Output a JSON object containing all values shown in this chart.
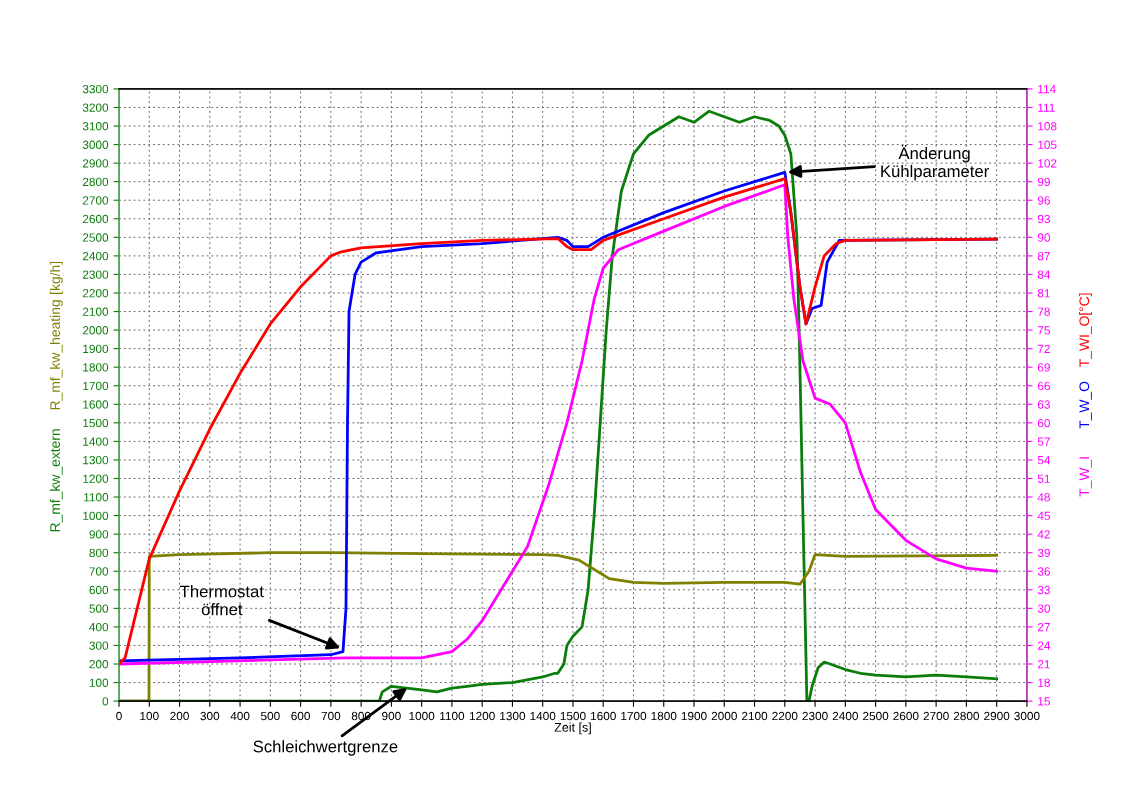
{
  "chart_data": {
    "type": "line",
    "xlabel": "Zeit [s]",
    "ylabel": "[kg/h]",
    "y2label": "[°C]",
    "xlim": [
      0,
      3000
    ],
    "xticks": [
      0,
      100,
      200,
      300,
      400,
      500,
      600,
      700,
      800,
      900,
      1000,
      1100,
      1200,
      1300,
      1400,
      1500,
      1600,
      1700,
      1800,
      1900,
      2000,
      2100,
      2200,
      2300,
      2400,
      2500,
      2600,
      2700,
      2800,
      2900,
      3000
    ],
    "ylim": [
      0,
      3300
    ],
    "yticks": [
      0,
      100,
      200,
      300,
      400,
      500,
      600,
      700,
      800,
      900,
      1000,
      1100,
      1200,
      1300,
      1400,
      1500,
      1600,
      1700,
      1800,
      1900,
      2000,
      2100,
      2200,
      2300,
      2400,
      2500,
      2600,
      2700,
      2800,
      2900,
      3000,
      3100,
      3200,
      3300
    ],
    "y2lim": [
      15,
      114
    ],
    "y2ticks": [
      15,
      18,
      21,
      24,
      27,
      30,
      33,
      36,
      39,
      42,
      45,
      48,
      51,
      54,
      57,
      60,
      63,
      66,
      69,
      72,
      75,
      78,
      81,
      84,
      87,
      90,
      93,
      96,
      99,
      102,
      105,
      108,
      111,
      114
    ],
    "grid": true,
    "legend": false,
    "line_style": "solid",
    "marker": "none",
    "series": [
      {
        "name": "R_mf_kw_extern",
        "color": "#0a7d0a",
        "x": [
          0,
          860,
          870,
          900,
          950,
          1000,
          1050,
          1100,
          1150,
          1200,
          1300,
          1400,
          1440,
          1450,
          1470,
          1480,
          1500,
          1530,
          1550,
          1570,
          1590,
          1610,
          1630,
          1660,
          1700,
          1750,
          1800,
          1850,
          1900,
          1950,
          2000,
          2050,
          2100,
          2150,
          2180,
          2200,
          2220,
          2240,
          2250,
          2260,
          2273,
          2280,
          2290,
          2310,
          2330,
          2350,
          2400,
          2450,
          2500,
          2600,
          2700,
          2800,
          2900
        ],
        "values": [
          0,
          0,
          50,
          80,
          70,
          60,
          50,
          70,
          80,
          90,
          100,
          130,
          150,
          150,
          200,
          300,
          350,
          400,
          600,
          1000,
          1500,
          2000,
          2400,
          2750,
          2950,
          3050,
          3100,
          3150,
          3120,
          3180,
          3150,
          3120,
          3150,
          3130,
          3100,
          3050,
          2950,
          2500,
          1800,
          1000,
          0,
          0,
          80,
          180,
          210,
          200,
          170,
          150,
          140,
          130,
          140,
          130,
          120
        ]
      },
      {
        "name": "R_mf_kw_heating",
        "color": "#808000",
        "x": [
          0,
          99,
          100,
          200,
          500,
          700,
          1000,
          1400,
          1450,
          1520,
          1580,
          1620,
          1700,
          1800,
          2000,
          2200,
          2250,
          2280,
          2300,
          2400,
          2900
        ],
        "values": [
          0,
          0,
          780,
          790,
          800,
          800,
          795,
          790,
          785,
          760,
          700,
          660,
          640,
          635,
          640,
          640,
          630,
          700,
          790,
          780,
          785
        ]
      },
      {
        "name": "T_W_I",
        "color": "#ff00ff",
        "axis": "y2",
        "x": [
          0,
          750,
          1000,
          1100,
          1150,
          1200,
          1250,
          1300,
          1350,
          1420,
          1480,
          1530,
          1570,
          1600,
          1650,
          1800,
          2000,
          2200,
          2210,
          2230,
          2260,
          2300,
          2350,
          2400,
          2450,
          2500,
          2600,
          2700,
          2800,
          2900
        ],
        "values": [
          21,
          22,
          22,
          23,
          25,
          28,
          32,
          36,
          40,
          50,
          60,
          70,
          80,
          85,
          88,
          91,
          95,
          98.5,
          90,
          80,
          70,
          64,
          63,
          60,
          52,
          46,
          41,
          38,
          36.5,
          36
        ]
      },
      {
        "name": "T_W_O",
        "color": "#0000ff",
        "axis": "y2",
        "x": [
          0,
          400,
          700,
          740,
          750,
          755,
          760,
          780,
          800,
          850,
          1000,
          1200,
          1450,
          1480,
          1500,
          1550,
          1600,
          1800,
          2000,
          2200,
          2220,
          2250,
          2270,
          2290,
          2320,
          2340,
          2380,
          2900
        ],
        "values": [
          21.5,
          22,
          22.5,
          23,
          30,
          60,
          78,
          84,
          86,
          87.5,
          88.5,
          89,
          90,
          89.5,
          88.5,
          88.5,
          90,
          94,
          97.5,
          100.5,
          94,
          82,
          76,
          78.5,
          79,
          86,
          89.5,
          89.7
        ]
      },
      {
        "name": "T_WI_O",
        "color": "#ff0000",
        "axis": "y2",
        "x": [
          0,
          20,
          100,
          200,
          300,
          400,
          500,
          600,
          700,
          730,
          800,
          1000,
          1200,
          1450,
          1480,
          1500,
          1560,
          1600,
          1800,
          2000,
          2200,
          2220,
          2250,
          2270,
          2300,
          2330,
          2370,
          2400,
          2900
        ],
        "values": [
          21,
          22,
          38,
          49,
          59,
          68,
          76,
          82,
          87,
          87.6,
          88.3,
          89,
          89.5,
          89.8,
          88.5,
          88,
          88,
          89.5,
          93,
          96.5,
          99.5,
          94,
          82,
          76,
          82,
          87,
          89,
          89.5,
          89.7
        ]
      }
    ],
    "annotations": [
      {
        "text": "Änderung\nKühlparameter",
        "x": 2200,
        "y": 2850
      },
      {
        "text": "Thermostat\nöffnet",
        "x": 740,
        "y": 280
      },
      {
        "text": "Schleichwertgrenze",
        "x": 960,
        "y": 80
      }
    ]
  }
}
